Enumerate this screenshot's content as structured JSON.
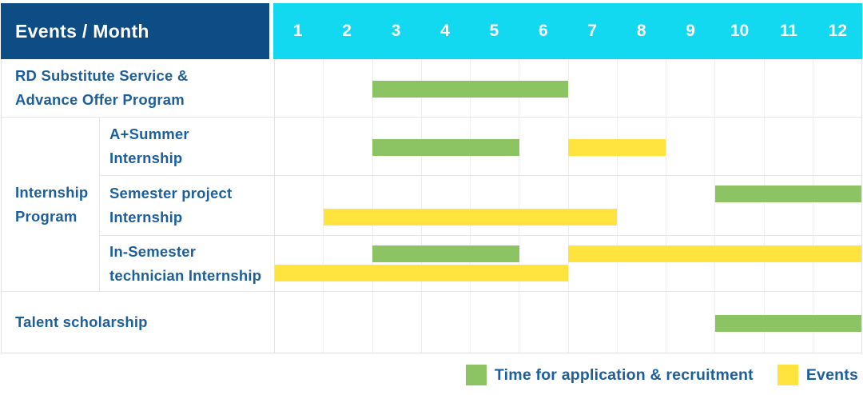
{
  "header": {
    "title": "Events / Month",
    "months": [
      "1",
      "2",
      "3",
      "4",
      "5",
      "6",
      "7",
      "8",
      "9",
      "10",
      "11",
      "12"
    ]
  },
  "colors": {
    "header_bg": "#0d4c85",
    "months_bg": "#12d8f0",
    "text_blue": "#1d5f9e",
    "green": "#8cc363",
    "yellow": "#ffe440",
    "grid_line": "#eeeef1",
    "row_border": "#e7e7ea"
  },
  "rows": [
    {
      "label_lines": [
        "RD Substitute Service &",
        "Advance Offer Program"
      ],
      "bars": [
        {
          "type": "green",
          "start": 3,
          "end": 7,
          "lane": "center"
        }
      ]
    },
    {
      "group_lines": [
        "Internship",
        "Program"
      ],
      "sub_rows": [
        {
          "label_lines": [
            "A+Summer",
            "Internship"
          ],
          "bars": [
            {
              "type": "green",
              "start": 3,
              "end": 6,
              "lane": "center"
            },
            {
              "type": "yellow",
              "start": 7,
              "end": 9,
              "lane": "center"
            }
          ]
        },
        {
          "label_lines": [
            "Semester project",
            "Internship"
          ],
          "bars": [
            {
              "type": "green",
              "start": 10,
              "end": 13,
              "lane": "top"
            },
            {
              "type": "yellow",
              "start": 2,
              "end": 8,
              "lane": "bottom"
            }
          ]
        },
        {
          "label_lines": [
            "In-Semester",
            "technician Internship"
          ],
          "bars": [
            {
              "type": "green",
              "start": 3,
              "end": 6,
              "lane": "top"
            },
            {
              "type": "yellow",
              "start": 7,
              "end": 13,
              "lane": "top"
            },
            {
              "type": "yellow",
              "start": 1,
              "end": 7,
              "lane": "bottom"
            }
          ]
        }
      ]
    },
    {
      "label_lines": [
        "Talent scholarship"
      ],
      "bars": [
        {
          "type": "green",
          "start": 10,
          "end": 13,
          "lane": "center"
        }
      ]
    }
  ],
  "legend": [
    {
      "label": "Time for application & recruitment",
      "color_key": "green"
    },
    {
      "label": "Events",
      "color_key": "yellow"
    }
  ],
  "chart_data": {
    "type": "table",
    "title": "Events / Month",
    "x_axis": {
      "label": "Month",
      "ticks": [
        1,
        2,
        3,
        4,
        5,
        6,
        7,
        8,
        9,
        10,
        11,
        12
      ],
      "range": [
        1,
        12
      ]
    },
    "grid": true,
    "legend_position": "bottom-right",
    "legend": [
      {
        "label": "Time for application & recruitment",
        "color": "#8cc363"
      },
      {
        "label": "Events",
        "color": "#ffe440"
      }
    ],
    "rows": [
      {
        "event": "RD Substitute Service & Advance Offer Program",
        "group": null,
        "application_recruitment_months": [
          [
            3,
            6
          ]
        ],
        "events_months": []
      },
      {
        "event": "A+Summer Internship",
        "group": "Internship Program",
        "application_recruitment_months": [
          [
            3,
            5
          ]
        ],
        "events_months": [
          [
            7,
            8
          ]
        ]
      },
      {
        "event": "Semester project Internship",
        "group": "Internship Program",
        "application_recruitment_months": [
          [
            10,
            12
          ]
        ],
        "events_months": [
          [
            2,
            7
          ]
        ]
      },
      {
        "event": "In-Semester technician Internship",
        "group": "Internship Program",
        "application_recruitment_months": [
          [
            3,
            5
          ]
        ],
        "events_months": [
          [
            1,
            6
          ],
          [
            7,
            12
          ]
        ]
      },
      {
        "event": "Talent scholarship",
        "group": null,
        "application_recruitment_months": [
          [
            10,
            12
          ]
        ],
        "events_months": []
      }
    ]
  }
}
